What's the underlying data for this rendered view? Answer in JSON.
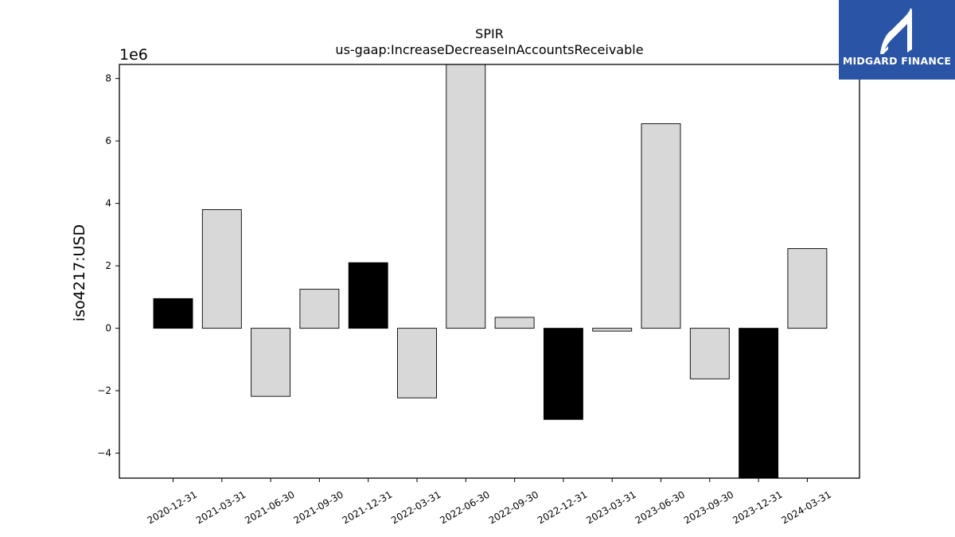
{
  "brand": {
    "name": "MIDGARD FINANCE",
    "bg_color": "#2a55a6",
    "icon": "midgard-logo-icon"
  },
  "chart_data": {
    "type": "bar",
    "title": "SPIR",
    "subtitle": "us-gaap:IncreaseDecreaseInAccountsReceivable",
    "ylabel": "iso4217:USD",
    "xlabel": "",
    "offset_label": "1e6",
    "ylim": [
      -4800000.0,
      8450000.0
    ],
    "yticks": [
      -4,
      -2,
      0,
      2,
      4,
      6,
      8
    ],
    "grid": false,
    "categories": [
      "2020-12-31",
      "2021-03-31",
      "2021-06-30",
      "2021-09-30",
      "2021-12-31",
      "2022-03-31",
      "2022-06-30",
      "2022-09-30",
      "2022-12-31",
      "2023-03-31",
      "2023-06-30",
      "2023-09-30",
      "2023-12-31",
      "2024-03-31"
    ],
    "values": [
      950000,
      3800000,
      -2180000,
      1250000,
      2100000,
      -2230000,
      8450000,
      350000,
      -2920000,
      -90000,
      6550000,
      -1620000,
      -4800000,
      2550000
    ],
    "colors": {
      "quarter_bar": "#d8d8d8",
      "year_end_bar": "#000000",
      "edge": "#000000"
    },
    "year_end_categories": [
      "2020-12-31",
      "2021-12-31",
      "2022-12-31",
      "2023-12-31"
    ]
  }
}
